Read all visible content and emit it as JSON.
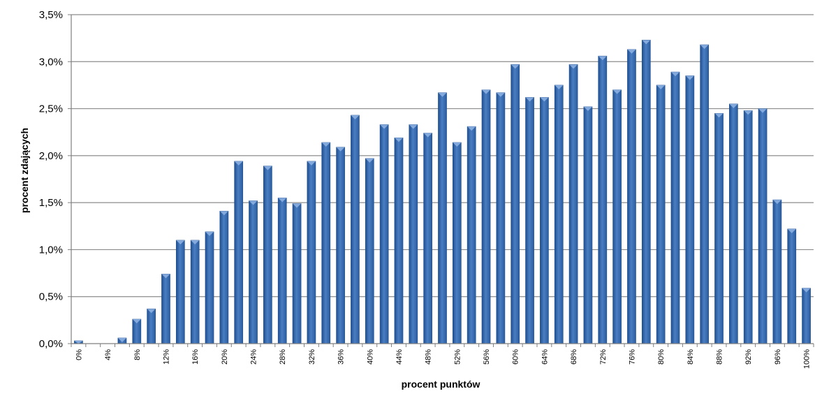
{
  "chart_data": {
    "type": "bar",
    "xlabel": "procent punktów",
    "ylabel": "procent  zdających",
    "ylim": [
      0,
      3.5
    ],
    "y_ticks": [
      0,
      0.5,
      1.0,
      1.5,
      2.0,
      2.5,
      3.0,
      3.5
    ],
    "y_tick_labels": [
      "0,0%",
      "0,5%",
      "1,0%",
      "1,5%",
      "2,0%",
      "2,5%",
      "3,0%",
      "3,5%"
    ],
    "grid": true,
    "legend": "none",
    "categories": [
      "0%",
      "2%",
      "4%",
      "6%",
      "8%",
      "10%",
      "12%",
      "14%",
      "16%",
      "18%",
      "20%",
      "22%",
      "24%",
      "26%",
      "28%",
      "30%",
      "32%",
      "34%",
      "36%",
      "38%",
      "40%",
      "42%",
      "44%",
      "46%",
      "48%",
      "50%",
      "52%",
      "54%",
      "56%",
      "58%",
      "60%",
      "62%",
      "64%",
      "66%",
      "68%",
      "70%",
      "72%",
      "74%",
      "76%",
      "78%",
      "80%",
      "82%",
      "84%",
      "86%",
      "88%",
      "90%",
      "92%",
      "94%",
      "96%",
      "98%",
      "100%"
    ],
    "x_tick_labels": [
      "0%",
      "4%",
      "8%",
      "12%",
      "16%",
      "20%",
      "24%",
      "28%",
      "32%",
      "36%",
      "40%",
      "44%",
      "48%",
      "52%",
      "56%",
      "60%",
      "64%",
      "68%",
      "72%",
      "76%",
      "80%",
      "84%",
      "88%",
      "92%",
      "96%",
      "100%"
    ],
    "values": [
      0.03,
      0.0,
      0.0,
      0.06,
      0.26,
      0.37,
      0.74,
      1.1,
      1.1,
      1.19,
      1.41,
      1.94,
      1.52,
      1.89,
      1.55,
      1.49,
      1.94,
      2.14,
      2.09,
      2.43,
      1.97,
      2.33,
      2.19,
      2.33,
      2.24,
      2.67,
      2.14,
      2.31,
      2.7,
      2.67,
      2.97,
      2.62,
      2.62,
      2.75,
      2.97,
      2.52,
      3.06,
      2.7,
      3.13,
      3.23,
      2.75,
      2.89,
      2.85,
      3.18,
      2.45,
      2.55,
      2.48,
      2.5,
      1.53,
      1.22,
      0.59
    ],
    "colors": {
      "bar": "#3c6fb4",
      "bar_dark": "#1f4f91",
      "bar_light": "#8fb3e3",
      "grid": "#8c8c8c"
    }
  }
}
